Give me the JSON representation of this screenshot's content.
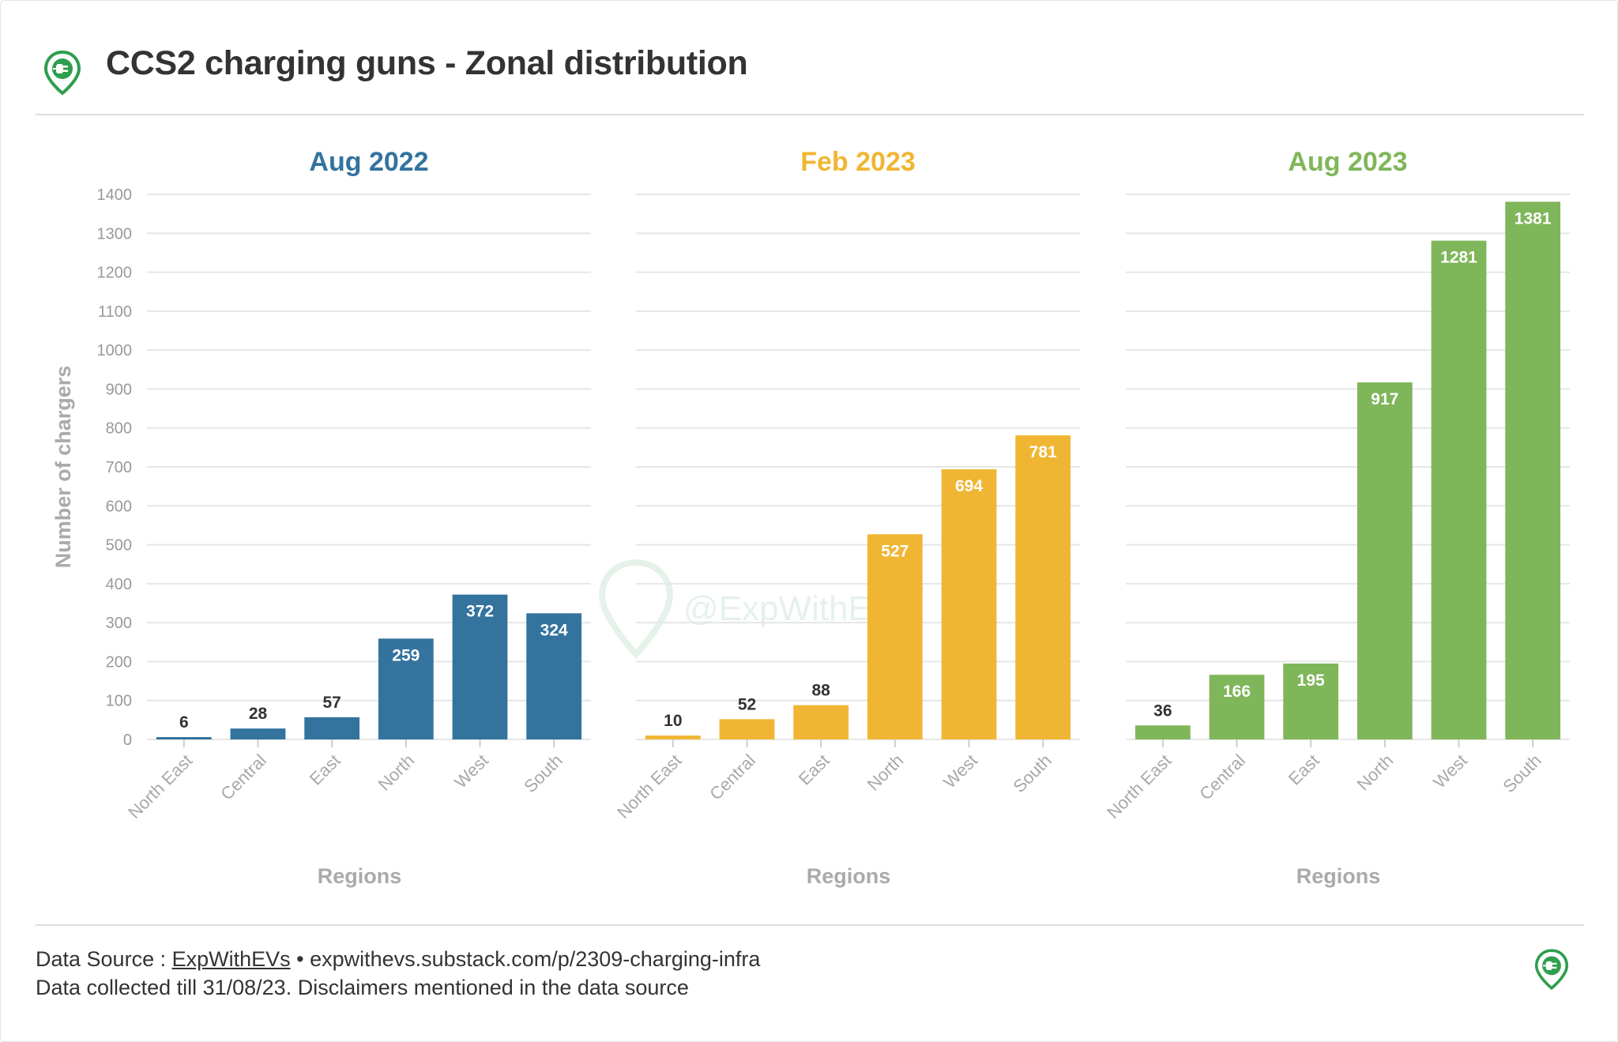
{
  "header": {
    "title": "CCS2 charging guns - Zonal distribution",
    "icon": "ev-charger-pin-icon"
  },
  "colors": {
    "aug2022": "#33739e",
    "feb2023": "#f0b633",
    "aug2023": "#80b65a",
    "brand": "#2e9e4f",
    "grid": "#e6e6e6",
    "axis_text": "#999999"
  },
  "y_axis_label": "Number of chargers",
  "watermark": "@ExpWithEVs",
  "chart_data": [
    {
      "type": "bar",
      "title": "Aug 2022",
      "categories": [
        "North East",
        "Central",
        "East",
        "North",
        "West",
        "South"
      ],
      "values": [
        6,
        28,
        57,
        259,
        372,
        324
      ],
      "xlabel": "Regions",
      "ylabel": "Number of chargers",
      "ylim": [
        0,
        1400
      ],
      "yticks": [
        0,
        100,
        200,
        300,
        400,
        500,
        600,
        700,
        800,
        900,
        1000,
        1100,
        1200,
        1300,
        1400
      ],
      "grid": true
    },
    {
      "type": "bar",
      "title": "Feb 2023",
      "categories": [
        "North East",
        "Central",
        "East",
        "North",
        "West",
        "South"
      ],
      "values": [
        10,
        52,
        88,
        527,
        694,
        781
      ],
      "xlabel": "Regions",
      "ylim": [
        0,
        1400
      ],
      "grid": true
    },
    {
      "type": "bar",
      "title": "Aug 2023",
      "categories": [
        "North East",
        "Central",
        "East",
        "North",
        "West",
        "South"
      ],
      "values": [
        36,
        166,
        195,
        917,
        1281,
        1381
      ],
      "xlabel": "Regions",
      "ylim": [
        0,
        1400
      ],
      "grid": true
    }
  ],
  "footer": {
    "source_prefix": "Data Source : ",
    "source_link": "ExpWithEVs",
    "source_url_text": " • expwithevs.substack.com/p/2309-charging-infra",
    "disclaimer": "Data collected till 31/08/23. Disclaimers mentioned in the data source"
  }
}
